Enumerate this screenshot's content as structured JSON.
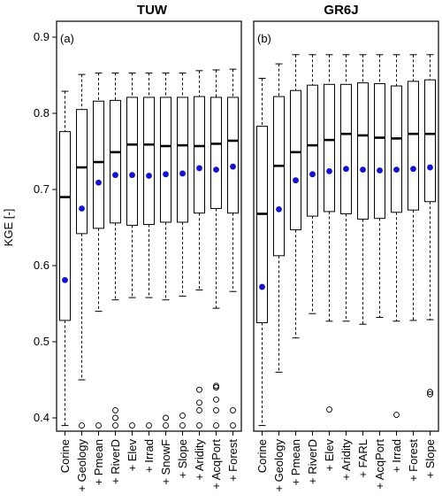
{
  "chart_data": [
    {
      "type": "boxplot",
      "title": "TUW",
      "panel_label": "(a)",
      "ylabel": "KGE [-]",
      "ylim": [
        0.38,
        0.92
      ],
      "yticks": [
        "0.4",
        "0.5",
        "0.6",
        "0.7",
        "0.8",
        "0.9"
      ],
      "categories": [
        "Corine",
        "+ Geology",
        "+ Pmean",
        "+ RiverD",
        "+ Elev",
        "+ Irrad",
        "+ SnowF",
        "+ Slope",
        "+ Aridity",
        "+ AcqPort",
        "+ Forest"
      ],
      "boxes": [
        {
          "whisker_low": 0.39,
          "q1": 0.528,
          "median": 0.69,
          "q3": 0.776,
          "whisker_high": 0.829,
          "mean": 0.581,
          "outliers": []
        },
        {
          "whisker_low": 0.45,
          "q1": 0.642,
          "median": 0.729,
          "q3": 0.805,
          "whisker_high": 0.851,
          "mean": 0.675,
          "outliers": [
            0.39
          ]
        },
        {
          "whisker_low": 0.54,
          "q1": 0.649,
          "median": 0.736,
          "q3": 0.816,
          "whisker_high": 0.853,
          "mean": 0.709,
          "outliers": [
            0.39
          ]
        },
        {
          "whisker_low": 0.555,
          "q1": 0.656,
          "median": 0.749,
          "q3": 0.817,
          "whisker_high": 0.853,
          "mean": 0.719,
          "outliers": [
            0.39,
            0.4,
            0.41
          ]
        },
        {
          "whisker_low": 0.558,
          "q1": 0.653,
          "median": 0.759,
          "q3": 0.821,
          "whisker_high": 0.853,
          "mean": 0.719,
          "outliers": [
            0.39
          ]
        },
        {
          "whisker_low": 0.558,
          "q1": 0.654,
          "median": 0.759,
          "q3": 0.821,
          "whisker_high": 0.853,
          "mean": 0.718,
          "outliers": [
            0.39
          ]
        },
        {
          "whisker_low": 0.555,
          "q1": 0.657,
          "median": 0.757,
          "q3": 0.821,
          "whisker_high": 0.853,
          "mean": 0.72,
          "outliers": [
            0.39,
            0.4
          ]
        },
        {
          "whisker_low": 0.56,
          "q1": 0.657,
          "median": 0.758,
          "q3": 0.821,
          "whisker_high": 0.853,
          "mean": 0.721,
          "outliers": [
            0.39,
            0.403
          ]
        },
        {
          "whisker_low": 0.568,
          "q1": 0.669,
          "median": 0.757,
          "q3": 0.822,
          "whisker_high": 0.856,
          "mean": 0.728,
          "outliers": [
            0.39,
            0.41,
            0.42,
            0.437
          ]
        },
        {
          "whisker_low": 0.544,
          "q1": 0.675,
          "median": 0.76,
          "q3": 0.821,
          "whisker_high": 0.857,
          "mean": 0.726,
          "outliers": [
            0.39,
            0.41,
            0.424,
            0.44,
            0.442
          ]
        },
        {
          "whisker_low": 0.566,
          "q1": 0.669,
          "median": 0.764,
          "q3": 0.821,
          "whisker_high": 0.858,
          "mean": 0.73,
          "outliers": [
            0.39,
            0.41
          ]
        }
      ]
    },
    {
      "type": "boxplot",
      "title": "GR6J",
      "panel_label": "(b)",
      "ylabel": "",
      "ylim": [
        0.38,
        0.92
      ],
      "yticks": [],
      "categories": [
        "Corine",
        "+ Geology",
        "+ Pmean",
        "+ RiverD",
        "+ Elev",
        "+ Aridity",
        "+ FARL",
        "+ AcqPort",
        "+ Irrad",
        "+ Forest",
        "+ Slope"
      ],
      "boxes": [
        {
          "whisker_low": 0.39,
          "q1": 0.525,
          "median": 0.668,
          "q3": 0.783,
          "whisker_high": 0.846,
          "mean": 0.572,
          "outliers": []
        },
        {
          "whisker_low": 0.46,
          "q1": 0.613,
          "median": 0.731,
          "q3": 0.822,
          "whisker_high": 0.865,
          "mean": 0.674,
          "outliers": []
        },
        {
          "whisker_low": 0.505,
          "q1": 0.647,
          "median": 0.749,
          "q3": 0.83,
          "whisker_high": 0.877,
          "mean": 0.712,
          "outliers": []
        },
        {
          "whisker_low": 0.537,
          "q1": 0.665,
          "median": 0.758,
          "q3": 0.837,
          "whisker_high": 0.877,
          "mean": 0.72,
          "outliers": []
        },
        {
          "whisker_low": 0.527,
          "q1": 0.671,
          "median": 0.765,
          "q3": 0.838,
          "whisker_high": 0.877,
          "mean": 0.724,
          "outliers": [
            0.411
          ]
        },
        {
          "whisker_low": 0.527,
          "q1": 0.668,
          "median": 0.773,
          "q3": 0.838,
          "whisker_high": 0.877,
          "mean": 0.727,
          "outliers": []
        },
        {
          "whisker_low": 0.523,
          "q1": 0.661,
          "median": 0.771,
          "q3": 0.84,
          "whisker_high": 0.877,
          "mean": 0.726,
          "outliers": []
        },
        {
          "whisker_low": 0.532,
          "q1": 0.662,
          "median": 0.768,
          "q3": 0.839,
          "whisker_high": 0.877,
          "mean": 0.725,
          "outliers": []
        },
        {
          "whisker_low": 0.527,
          "q1": 0.67,
          "median": 0.767,
          "q3": 0.836,
          "whisker_high": 0.877,
          "mean": 0.726,
          "outliers": [
            0.404
          ]
        },
        {
          "whisker_low": 0.528,
          "q1": 0.673,
          "median": 0.773,
          "q3": 0.842,
          "whisker_high": 0.877,
          "mean": 0.727,
          "outliers": []
        },
        {
          "whisker_low": 0.529,
          "q1": 0.684,
          "median": 0.773,
          "q3": 0.844,
          "whisker_high": 0.877,
          "mean": 0.729,
          "outliers": [
            0.431,
            0.434
          ]
        }
      ]
    }
  ],
  "colors": {
    "mean_marker": "#1010e0",
    "stroke": "#000000",
    "background": "#ffffff"
  }
}
